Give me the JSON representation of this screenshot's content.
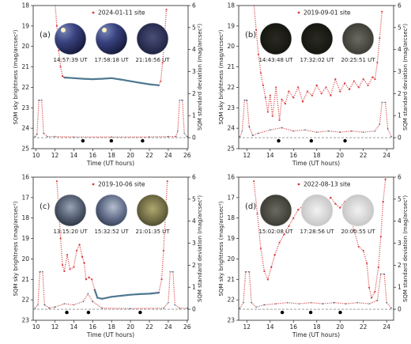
{
  "chart_data": [
    {
      "type": "scatter",
      "panel_label": "(a)",
      "legend_label": "2024-01-11 site",
      "legend_placement": "top-center",
      "xlabel": "Time (UT hours)",
      "ylabel": "SQM sky brightness (mag/arcsec²)",
      "ylabel_right": "SQM standard deviation (mag/arcsec²)",
      "xlim": [
        9.7,
        26.1
      ],
      "ylim": [
        25,
        18
      ],
      "ylim_right": [
        -0.5,
        6
      ],
      "xticks": [
        10,
        12,
        14,
        16,
        18,
        20,
        22,
        24,
        26
      ],
      "yticks": [
        18,
        19,
        20,
        21,
        22,
        23,
        24,
        25
      ],
      "yticks_right": [
        0,
        1,
        2,
        3,
        4,
        5,
        6
      ],
      "photos": [
        {
          "label": "14:57:39 UT",
          "x": 14.96,
          "style": "clear-moon"
        },
        {
          "label": "17:58:18 UT",
          "x": 17.97,
          "style": "clear-moon"
        },
        {
          "label": "21:16:56 UT",
          "x": 21.28,
          "style": "clear-stars"
        }
      ],
      "brightness": [
        {
          "x": 12.0,
          "y": 17.8
        },
        {
          "x": 12.2,
          "y": 19.0
        },
        {
          "x": 12.4,
          "y": 20.2
        },
        {
          "x": 12.6,
          "y": 21.0
        },
        {
          "x": 12.8,
          "y": 21.45
        },
        {
          "x": 13.0,
          "y": 21.52
        },
        {
          "x": 14.0,
          "y": 21.55
        },
        {
          "x": 15.0,
          "y": 21.58
        },
        {
          "x": 16.0,
          "y": 21.6
        },
        {
          "x": 17.0,
          "y": 21.58
        },
        {
          "x": 18.0,
          "y": 21.55
        },
        {
          "x": 19.0,
          "y": 21.62
        },
        {
          "x": 20.0,
          "y": 21.7
        },
        {
          "x": 21.0,
          "y": 21.78
        },
        {
          "x": 22.0,
          "y": 21.85
        },
        {
          "x": 23.0,
          "y": 21.9
        },
        {
          "x": 23.2,
          "y": 21.7
        },
        {
          "x": 23.4,
          "y": 20.8
        },
        {
          "x": 23.6,
          "y": 19.6
        },
        {
          "x": 23.8,
          "y": 18.2
        }
      ],
      "std_dev": [
        {
          "x": 9.9,
          "y": 0.05
        },
        {
          "x": 10.1,
          "y": 0.15
        },
        {
          "x": 10.3,
          "y": 1.7
        },
        {
          "x": 10.6,
          "y": 1.7
        },
        {
          "x": 10.8,
          "y": 0.2
        },
        {
          "x": 11.2,
          "y": 0.05
        },
        {
          "x": 12.0,
          "y": 0.05
        },
        {
          "x": 14.0,
          "y": 0.03
        },
        {
          "x": 18.0,
          "y": 0.03
        },
        {
          "x": 22.0,
          "y": 0.03
        },
        {
          "x": 24.0,
          "y": 0.05
        },
        {
          "x": 24.8,
          "y": 0.05
        },
        {
          "x": 25.0,
          "y": 0.3
        },
        {
          "x": 25.2,
          "y": 1.7
        },
        {
          "x": 25.5,
          "y": 1.7
        },
        {
          "x": 25.7,
          "y": 0.2
        },
        {
          "x": 26.0,
          "y": 0.05
        }
      ],
      "markers_x": [
        14.96,
        17.97,
        21.28
      ]
    },
    {
      "type": "scatter",
      "panel_label": "(b)",
      "legend_label": "2019-09-01 site",
      "legend_placement": "top-center",
      "xlabel": "Time (UT hours)",
      "ylabel": "SQM sky brightness (mag/arcsec²)",
      "ylabel_right": "SQM standard deviation (mag/arcsec²)",
      "xlim": [
        11.3,
        24.6
      ],
      "ylim": [
        25,
        18
      ],
      "ylim_right": [
        -0.5,
        6
      ],
      "xticks": [
        12,
        14,
        16,
        18,
        20,
        22,
        24
      ],
      "yticks": [
        18,
        19,
        20,
        21,
        22,
        23,
        24,
        25
      ],
      "yticks_right": [
        0,
        1,
        2,
        3,
        4,
        5,
        6
      ],
      "photos": [
        {
          "label": "14:43:48 UT",
          "x": 14.73,
          "style": "overcast-dark"
        },
        {
          "label": "17:32:02 UT",
          "x": 17.53,
          "style": "overcast-dark"
        },
        {
          "label": "20:25:51 UT",
          "x": 20.43,
          "style": "overcast-grey"
        }
      ],
      "brightness": [
        {
          "x": 12.6,
          "y": 17.9
        },
        {
          "x": 12.8,
          "y": 19.2
        },
        {
          "x": 13.0,
          "y": 20.4
        },
        {
          "x": 13.2,
          "y": 21.3
        },
        {
          "x": 13.4,
          "y": 21.9
        },
        {
          "x": 13.6,
          "y": 22.5
        },
        {
          "x": 13.8,
          "y": 23.2
        },
        {
          "x": 14.0,
          "y": 22.4
        },
        {
          "x": 14.2,
          "y": 23.4
        },
        {
          "x": 14.5,
          "y": 22.0
        },
        {
          "x": 14.8,
          "y": 23.6
        },
        {
          "x": 15.0,
          "y": 22.6
        },
        {
          "x": 15.3,
          "y": 22.8
        },
        {
          "x": 15.6,
          "y": 22.2
        },
        {
          "x": 16.0,
          "y": 22.5
        },
        {
          "x": 16.4,
          "y": 22.0
        },
        {
          "x": 16.8,
          "y": 22.7
        },
        {
          "x": 17.2,
          "y": 22.2
        },
        {
          "x": 17.6,
          "y": 22.4
        },
        {
          "x": 18.0,
          "y": 21.9
        },
        {
          "x": 18.4,
          "y": 22.3
        },
        {
          "x": 18.8,
          "y": 22.0
        },
        {
          "x": 19.2,
          "y": 22.4
        },
        {
          "x": 19.6,
          "y": 21.6
        },
        {
          "x": 20.0,
          "y": 22.2
        },
        {
          "x": 20.4,
          "y": 21.8
        },
        {
          "x": 20.8,
          "y": 22.1
        },
        {
          "x": 21.2,
          "y": 21.7
        },
        {
          "x": 21.6,
          "y": 22.0
        },
        {
          "x": 22.0,
          "y": 21.6
        },
        {
          "x": 22.4,
          "y": 21.9
        },
        {
          "x": 22.8,
          "y": 21.5
        },
        {
          "x": 23.0,
          "y": 21.6
        },
        {
          "x": 23.2,
          "y": 20.8
        },
        {
          "x": 23.4,
          "y": 19.6
        },
        {
          "x": 23.6,
          "y": 18.3
        }
      ],
      "std_dev": [
        {
          "x": 11.4,
          "y": 0.05
        },
        {
          "x": 11.6,
          "y": 0.3
        },
        {
          "x": 11.8,
          "y": 1.7
        },
        {
          "x": 12.0,
          "y": 1.7
        },
        {
          "x": 12.2,
          "y": 0.5
        },
        {
          "x": 12.5,
          "y": 0.1
        },
        {
          "x": 13.0,
          "y": 0.2
        },
        {
          "x": 14.0,
          "y": 0.35
        },
        {
          "x": 15.0,
          "y": 0.45
        },
        {
          "x": 16.0,
          "y": 0.3
        },
        {
          "x": 17.0,
          "y": 0.35
        },
        {
          "x": 18.0,
          "y": 0.25
        },
        {
          "x": 19.0,
          "y": 0.3
        },
        {
          "x": 20.0,
          "y": 0.25
        },
        {
          "x": 21.0,
          "y": 0.3
        },
        {
          "x": 22.0,
          "y": 0.25
        },
        {
          "x": 23.0,
          "y": 0.3
        },
        {
          "x": 23.4,
          "y": 0.6
        },
        {
          "x": 23.6,
          "y": 1.6
        },
        {
          "x": 23.9,
          "y": 1.6
        },
        {
          "x": 24.1,
          "y": 0.4
        },
        {
          "x": 24.4,
          "y": 0.05
        }
      ],
      "markers_x": [
        14.73,
        17.53,
        20.43
      ]
    },
    {
      "type": "scatter",
      "panel_label": "(c)",
      "legend_label": "2019-10-06 site",
      "legend_placement": "top-center",
      "xlabel": "Time (UT hours)",
      "ylabel": "SQM sky brightness (mag/arcsec²)",
      "ylabel_right": "SQM standard deviation (mag/arcsec²)",
      "xlim": [
        9.7,
        26.1
      ],
      "ylim": [
        23,
        16
      ],
      "ylim_right": [
        -0.5,
        6
      ],
      "xticks": [
        10,
        12,
        14,
        16,
        18,
        20,
        22,
        24,
        26
      ],
      "yticks": [
        16,
        17,
        18,
        19,
        20,
        21,
        22,
        23
      ],
      "yticks_right": [
        0,
        1,
        2,
        3,
        4,
        5,
        6
      ],
      "photos": [
        {
          "label": "13:15:20 UT",
          "x": 13.26,
          "style": "partly-cloudy"
        },
        {
          "label": "15:32:52 UT",
          "x": 15.55,
          "style": "cloudy-blue"
        },
        {
          "label": "21:01:35 UT",
          "x": 21.03,
          "style": "cloudy-bright"
        }
      ],
      "brightness": [
        {
          "x": 12.2,
          "y": 16.2
        },
        {
          "x": 12.4,
          "y": 17.5
        },
        {
          "x": 12.6,
          "y": 19.0
        },
        {
          "x": 12.8,
          "y": 20.3
        },
        {
          "x": 13.0,
          "y": 20.6
        },
        {
          "x": 13.3,
          "y": 19.8
        },
        {
          "x": 13.6,
          "y": 20.5
        },
        {
          "x": 14.0,
          "y": 20.4
        },
        {
          "x": 14.3,
          "y": 19.6
        },
        {
          "x": 14.6,
          "y": 19.3
        },
        {
          "x": 14.9,
          "y": 19.9
        },
        {
          "x": 15.1,
          "y": 20.2
        },
        {
          "x": 15.3,
          "y": 21.0
        },
        {
          "x": 15.6,
          "y": 20.9
        },
        {
          "x": 15.9,
          "y": 21.0
        },
        {
          "x": 16.2,
          "y": 21.5
        },
        {
          "x": 16.5,
          "y": 21.9
        },
        {
          "x": 17.0,
          "y": 21.95
        },
        {
          "x": 18.0,
          "y": 21.85
        },
        {
          "x": 19.0,
          "y": 21.8
        },
        {
          "x": 20.0,
          "y": 21.75
        },
        {
          "x": 21.0,
          "y": 21.72
        },
        {
          "x": 22.0,
          "y": 21.7
        },
        {
          "x": 23.0,
          "y": 21.65
        },
        {
          "x": 23.3,
          "y": 21.0
        },
        {
          "x": 23.5,
          "y": 19.6
        },
        {
          "x": 23.7,
          "y": 17.8
        },
        {
          "x": 23.9,
          "y": 16.2
        }
      ],
      "std_dev": [
        {
          "x": 9.9,
          "y": 0.05
        },
        {
          "x": 10.2,
          "y": 0.2
        },
        {
          "x": 10.4,
          "y": 1.7
        },
        {
          "x": 10.7,
          "y": 1.7
        },
        {
          "x": 10.9,
          "y": 0.2
        },
        {
          "x": 11.4,
          "y": 0.05
        },
        {
          "x": 12.0,
          "y": 0.1
        },
        {
          "x": 13.0,
          "y": 0.25
        },
        {
          "x": 14.0,
          "y": 0.2
        },
        {
          "x": 15.0,
          "y": 0.35
        },
        {
          "x": 15.5,
          "y": 0.7
        },
        {
          "x": 16.0,
          "y": 0.35
        },
        {
          "x": 17.0,
          "y": 0.05
        },
        {
          "x": 20.0,
          "y": 0.03
        },
        {
          "x": 23.5,
          "y": 0.05
        },
        {
          "x": 24.0,
          "y": 0.3
        },
        {
          "x": 24.2,
          "y": 1.7
        },
        {
          "x": 24.5,
          "y": 1.7
        },
        {
          "x": 24.7,
          "y": 0.2
        },
        {
          "x": 25.2,
          "y": 0.05
        },
        {
          "x": 26.0,
          "y": 0.05
        }
      ],
      "markers_x": [
        13.26,
        15.55,
        21.03
      ]
    },
    {
      "type": "scatter",
      "panel_label": "(d)",
      "legend_label": "2022-08-13 site",
      "legend_placement": "top-center",
      "xlabel": "Time (UT hours)",
      "ylabel": "SQM sky brightness (mag/arcsec²)",
      "ylabel_right": "SQM standard deviation (mag/arcsec²)",
      "xlim": [
        11.3,
        24.6
      ],
      "ylim": [
        23,
        16
      ],
      "ylim_right": [
        -0.5,
        6
      ],
      "xticks": [
        12,
        14,
        16,
        18,
        20,
        22,
        24
      ],
      "yticks": [
        16,
        17,
        18,
        19,
        20,
        21,
        22,
        23
      ],
      "yticks_right": [
        0,
        1,
        2,
        3,
        4,
        5,
        6
      ],
      "photos": [
        {
          "label": "15:02:08 UT",
          "x": 15.04,
          "style": "overcast-grey"
        },
        {
          "label": "17:28:56 UT",
          "x": 17.48,
          "style": "overcast-white"
        },
        {
          "label": "20:00:55 UT",
          "x": 20.02,
          "style": "overcast-white"
        }
      ],
      "brightness": [
        {
          "x": 12.6,
          "y": 16.2
        },
        {
          "x": 12.9,
          "y": 17.8
        },
        {
          "x": 13.2,
          "y": 19.5
        },
        {
          "x": 13.5,
          "y": 20.6
        },
        {
          "x": 13.8,
          "y": 21.0
        },
        {
          "x": 14.1,
          "y": 20.4
        },
        {
          "x": 14.4,
          "y": 19.8
        },
        {
          "x": 14.8,
          "y": 19.2
        },
        {
          "x": 15.2,
          "y": 18.8
        },
        {
          "x": 15.6,
          "y": 18.4
        },
        {
          "x": 16.0,
          "y": 18.0
        },
        {
          "x": 16.4,
          "y": 17.6
        },
        {
          "x": 16.8,
          "y": 17.4
        },
        {
          "x": 17.2,
          "y": 17.2
        },
        {
          "x": 17.6,
          "y": 17.1
        },
        {
          "x": 18.0,
          "y": 17.3
        },
        {
          "x": 18.4,
          "y": 17.0
        },
        {
          "x": 18.8,
          "y": 17.2
        },
        {
          "x": 19.2,
          "y": 17.0
        },
        {
          "x": 19.6,
          "y": 17.3
        },
        {
          "x": 20.0,
          "y": 17.5
        },
        {
          "x": 20.4,
          "y": 17.2
        },
        {
          "x": 20.8,
          "y": 17.8
        },
        {
          "x": 21.2,
          "y": 18.6
        },
        {
          "x": 21.6,
          "y": 19.4
        },
        {
          "x": 22.0,
          "y": 19.6
        },
        {
          "x": 22.3,
          "y": 20.2
        },
        {
          "x": 22.5,
          "y": 21.4
        },
        {
          "x": 22.7,
          "y": 21.9
        },
        {
          "x": 23.0,
          "y": 21.6
        },
        {
          "x": 23.3,
          "y": 20.4
        },
        {
          "x": 23.5,
          "y": 18.9
        },
        {
          "x": 23.7,
          "y": 17.2
        },
        {
          "x": 23.9,
          "y": 16.1
        }
      ],
      "std_dev": [
        {
          "x": 11.4,
          "y": 0.05
        },
        {
          "x": 11.7,
          "y": 0.3
        },
        {
          "x": 11.9,
          "y": 1.7
        },
        {
          "x": 12.2,
          "y": 1.7
        },
        {
          "x": 12.4,
          "y": 0.3
        },
        {
          "x": 12.8,
          "y": 0.1
        },
        {
          "x": 13.5,
          "y": 0.2
        },
        {
          "x": 14.5,
          "y": 0.25
        },
        {
          "x": 15.5,
          "y": 0.3
        },
        {
          "x": 16.5,
          "y": 0.25
        },
        {
          "x": 17.5,
          "y": 0.3
        },
        {
          "x": 18.5,
          "y": 0.25
        },
        {
          "x": 19.5,
          "y": 0.3
        },
        {
          "x": 20.5,
          "y": 0.25
        },
        {
          "x": 21.5,
          "y": 0.3
        },
        {
          "x": 22.5,
          "y": 0.25
        },
        {
          "x": 23.2,
          "y": 0.4
        },
        {
          "x": 23.5,
          "y": 1.6
        },
        {
          "x": 23.8,
          "y": 1.6
        },
        {
          "x": 24.0,
          "y": 0.3
        },
        {
          "x": 24.4,
          "y": 0.05
        }
      ],
      "markers_x": [
        15.04,
        17.48,
        20.02
      ]
    }
  ]
}
